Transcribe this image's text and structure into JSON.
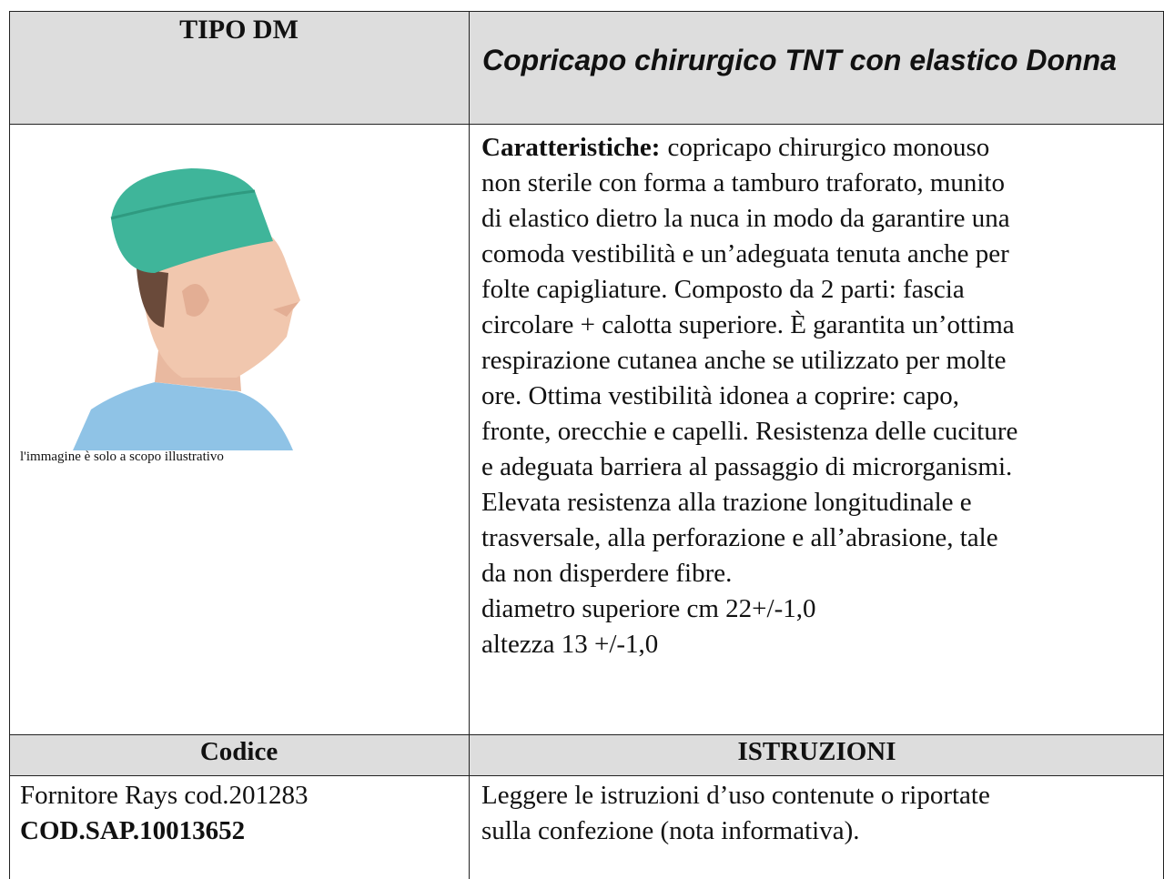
{
  "header": {
    "left": "TIPO DM",
    "right": "Copricapo chirurgico TNT con elastico Donna"
  },
  "image": {
    "caption": "l'immagine è solo a scopo illustrativo"
  },
  "description": {
    "label": "Caratteristiche:",
    "lines": [
      "copricapo chirurgico monouso",
      "non sterile con forma a tamburo traforato, munito",
      "di elastico dietro la nuca in modo da garantire una",
      "comoda vestibilità e un’adeguata tenuta anche per",
      "folte capigliature. Composto da 2 parti: fascia",
      "circolare + calotta superiore. È garantita un’ottima",
      "respirazione cutanea anche se utilizzato per molte",
      "ore. Ottima vestibilità idonea a coprire: capo,",
      "fronte, orecchie e capelli. Resistenza delle cuciture",
      "e adeguata barriera al passaggio di microrganismi.",
      "Elevata resistenza alla trazione longitudinale e",
      "trasversale, alla perforazione e all’abrasione, tale",
      "da non disperdere fibre.",
      "diametro superiore cm 22+/-1,0",
      "altezza 13 +/-1,0"
    ]
  },
  "footer_header": {
    "left": "Codice",
    "right": "ISTRUZIONI"
  },
  "footer": {
    "supplier": "Fornitore Rays cod.201283",
    "sap_code": "COD.SAP.10013652",
    "instructions": [
      "Leggere le istruzioni d’uso contenute o riportate",
      "sulla confezione (nota informativa)."
    ]
  }
}
